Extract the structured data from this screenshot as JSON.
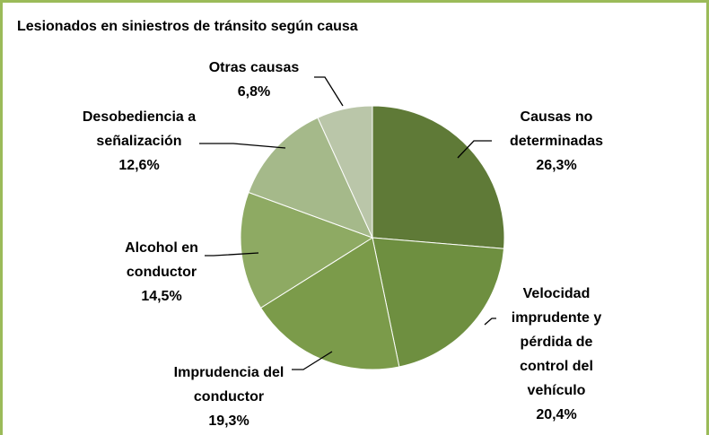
{
  "chart_data": {
    "type": "pie",
    "title": "Lesionados en siniestros de tránsito según causa",
    "categories": [
      "Causas no determinadas",
      "Velocidad imprudente y pérdida de control del vehículo",
      "Imprudencia del conductor",
      "Alcohol en conductor",
      "Desobediencia a señalización",
      "Otras causas"
    ],
    "values": [
      26.3,
      20.4,
      19.3,
      14.5,
      12.6,
      6.8
    ],
    "value_labels": [
      "26,3%",
      "20,4%",
      "19,3%",
      "14,5%",
      "12,6%",
      "6,8%"
    ],
    "colors": [
      "#5f7a37",
      "#6e8f40",
      "#7b9b4a",
      "#8eaa63",
      "#a5b98a",
      "#bac6a9"
    ]
  }
}
